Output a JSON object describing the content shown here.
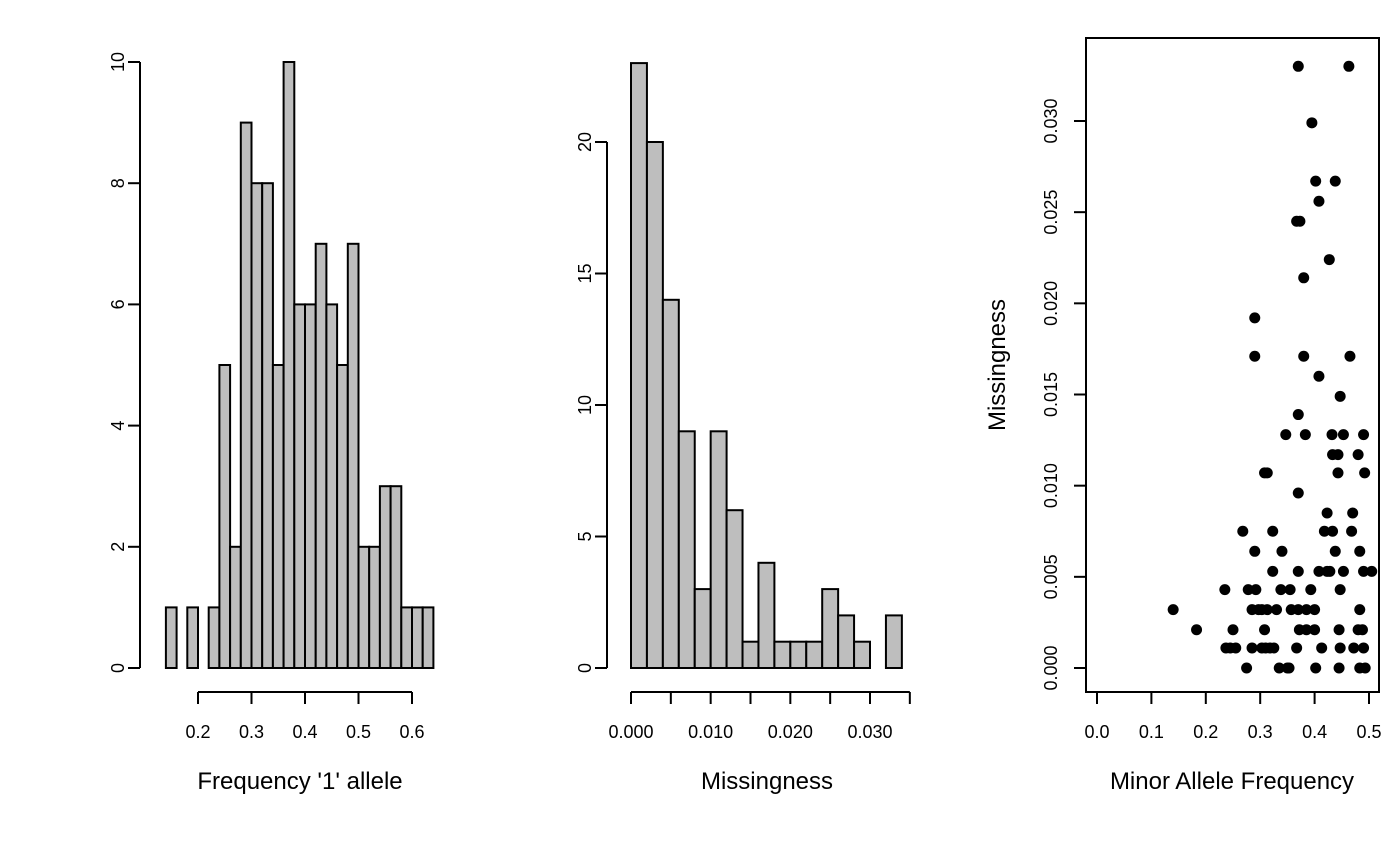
{
  "bar_fill": "#BEBEBE",
  "point_color": "#000000",
  "chart_data": [
    {
      "type": "bar",
      "xlabel": "Frequency '1' allele",
      "ylabel": "",
      "xlim": [
        0.14,
        0.64
      ],
      "ylim": [
        0,
        10
      ],
      "bin_width": 0.02,
      "bins_start": [
        0.14,
        0.16,
        0.18,
        0.2,
        0.22,
        0.24,
        0.26,
        0.28,
        0.3,
        0.32,
        0.34,
        0.36,
        0.38,
        0.4,
        0.42,
        0.44,
        0.46,
        0.48,
        0.5,
        0.52,
        0.54,
        0.56,
        0.58,
        0.6,
        0.62
      ],
      "values": [
        1,
        0,
        1,
        0,
        1,
        5,
        2,
        9,
        8,
        8,
        5,
        10,
        6,
        6,
        7,
        6,
        5,
        7,
        2,
        2,
        3,
        3,
        1,
        1,
        1
      ],
      "x_ticks": [
        0.2,
        0.3,
        0.4,
        0.5,
        0.6
      ],
      "x_tick_labels": [
        "0.2",
        "0.3",
        "0.4",
        "0.5",
        "0.6"
      ],
      "y_ticks": [
        0,
        2,
        4,
        6,
        8,
        10
      ],
      "y_tick_labels": [
        "0",
        "2",
        "4",
        "6",
        "8",
        "10"
      ]
    },
    {
      "type": "bar",
      "xlabel": "Missingness",
      "ylabel": "",
      "xlim": [
        0,
        0.034
      ],
      "ylim": [
        0,
        23
      ],
      "bin_width": 0.002,
      "bins_start": [
        0.0,
        0.002,
        0.004,
        0.006,
        0.008,
        0.01,
        0.012,
        0.014,
        0.016,
        0.018,
        0.02,
        0.022,
        0.024,
        0.026,
        0.028,
        0.03,
        0.032
      ],
      "values": [
        23,
        20,
        14,
        9,
        3,
        9,
        6,
        1,
        4,
        1,
        1,
        1,
        3,
        2,
        1,
        0,
        2
      ],
      "x_ticks": [
        0.0,
        0.01,
        0.02,
        0.03
      ],
      "x_tick_labels": [
        "0.000",
        "0.010",
        "0.020",
        "0.030"
      ],
      "y_ticks": [
        0,
        5,
        10,
        15,
        20
      ],
      "y_tick_labels": [
        "0",
        "5",
        "10",
        "15",
        "20"
      ]
    },
    {
      "type": "scatter",
      "xlabel": "Minor Allele Frequency",
      "ylabel": "Missingness",
      "xlim": [
        -0.02,
        0.52
      ],
      "ylim": [
        -0.0013,
        0.0343
      ],
      "x_ticks": [
        0.0,
        0.1,
        0.2,
        0.3,
        0.4,
        0.5
      ],
      "x_tick_labels": [
        "0.0",
        "0.1",
        "0.2",
        "0.3",
        "0.4",
        "0.5"
      ],
      "y_ticks": [
        0.0,
        0.005,
        0.01,
        0.015,
        0.02,
        0.025,
        0.03
      ],
      "y_tick_labels": [
        "0.000",
        "0.005",
        "0.010",
        "0.015",
        "0.020",
        "0.025",
        "0.030"
      ],
      "points": [
        [
          0.37,
          0.033
        ],
        [
          0.463,
          0.033
        ],
        [
          0.395,
          0.0299
        ],
        [
          0.402,
          0.0267
        ],
        [
          0.438,
          0.0267
        ],
        [
          0.408,
          0.0256
        ],
        [
          0.367,
          0.0245
        ],
        [
          0.373,
          0.0245
        ],
        [
          0.427,
          0.0224
        ],
        [
          0.38,
          0.0214
        ],
        [
          0.29,
          0.0192
        ],
        [
          0.29,
          0.0171
        ],
        [
          0.38,
          0.0171
        ],
        [
          0.465,
          0.0171
        ],
        [
          0.408,
          0.016
        ],
        [
          0.447,
          0.0149
        ],
        [
          0.37,
          0.0139
        ],
        [
          0.347,
          0.0128
        ],
        [
          0.383,
          0.0128
        ],
        [
          0.432,
          0.0128
        ],
        [
          0.453,
          0.0128
        ],
        [
          0.49,
          0.0128
        ],
        [
          0.433,
          0.0117
        ],
        [
          0.443,
          0.0117
        ],
        [
          0.48,
          0.0117
        ],
        [
          0.308,
          0.0107
        ],
        [
          0.313,
          0.0107
        ],
        [
          0.443,
          0.0107
        ],
        [
          0.492,
          0.0107
        ],
        [
          0.37,
          0.0096
        ],
        [
          0.423,
          0.0085
        ],
        [
          0.47,
          0.0085
        ],
        [
          0.268,
          0.0075
        ],
        [
          0.323,
          0.0075
        ],
        [
          0.418,
          0.0075
        ],
        [
          0.433,
          0.0075
        ],
        [
          0.468,
          0.0075
        ],
        [
          0.29,
          0.0064
        ],
        [
          0.34,
          0.0064
        ],
        [
          0.438,
          0.0064
        ],
        [
          0.483,
          0.0064
        ],
        [
          0.323,
          0.0053
        ],
        [
          0.37,
          0.0053
        ],
        [
          0.408,
          0.0053
        ],
        [
          0.423,
          0.0053
        ],
        [
          0.428,
          0.0053
        ],
        [
          0.453,
          0.0053
        ],
        [
          0.49,
          0.0053
        ],
        [
          0.505,
          0.0053
        ],
        [
          0.235,
          0.0043
        ],
        [
          0.278,
          0.0043
        ],
        [
          0.292,
          0.0043
        ],
        [
          0.338,
          0.0043
        ],
        [
          0.355,
          0.0043
        ],
        [
          0.393,
          0.0043
        ],
        [
          0.447,
          0.0043
        ],
        [
          0.14,
          0.0032
        ],
        [
          0.285,
          0.0032
        ],
        [
          0.297,
          0.0032
        ],
        [
          0.303,
          0.0032
        ],
        [
          0.313,
          0.0032
        ],
        [
          0.33,
          0.0032
        ],
        [
          0.357,
          0.0032
        ],
        [
          0.37,
          0.0032
        ],
        [
          0.385,
          0.0032
        ],
        [
          0.4,
          0.0032
        ],
        [
          0.483,
          0.0032
        ],
        [
          0.183,
          0.0021
        ],
        [
          0.25,
          0.0021
        ],
        [
          0.308,
          0.0021
        ],
        [
          0.372,
          0.0021
        ],
        [
          0.385,
          0.0021
        ],
        [
          0.4,
          0.0021
        ],
        [
          0.445,
          0.0021
        ],
        [
          0.48,
          0.0021
        ],
        [
          0.488,
          0.0021
        ],
        [
          0.237,
          0.0011
        ],
        [
          0.245,
          0.0011
        ],
        [
          0.255,
          0.0011
        ],
        [
          0.285,
          0.0011
        ],
        [
          0.303,
          0.0011
        ],
        [
          0.31,
          0.0011
        ],
        [
          0.318,
          0.0011
        ],
        [
          0.325,
          0.0011
        ],
        [
          0.367,
          0.0011
        ],
        [
          0.413,
          0.0011
        ],
        [
          0.447,
          0.0011
        ],
        [
          0.472,
          0.0011
        ],
        [
          0.49,
          0.0011
        ],
        [
          0.275,
          0.0
        ],
        [
          0.335,
          0.0
        ],
        [
          0.35,
          0.0
        ],
        [
          0.353,
          0.0
        ],
        [
          0.402,
          0.0
        ],
        [
          0.445,
          0.0
        ],
        [
          0.483,
          0.0
        ],
        [
          0.493,
          0.0
        ]
      ]
    }
  ]
}
